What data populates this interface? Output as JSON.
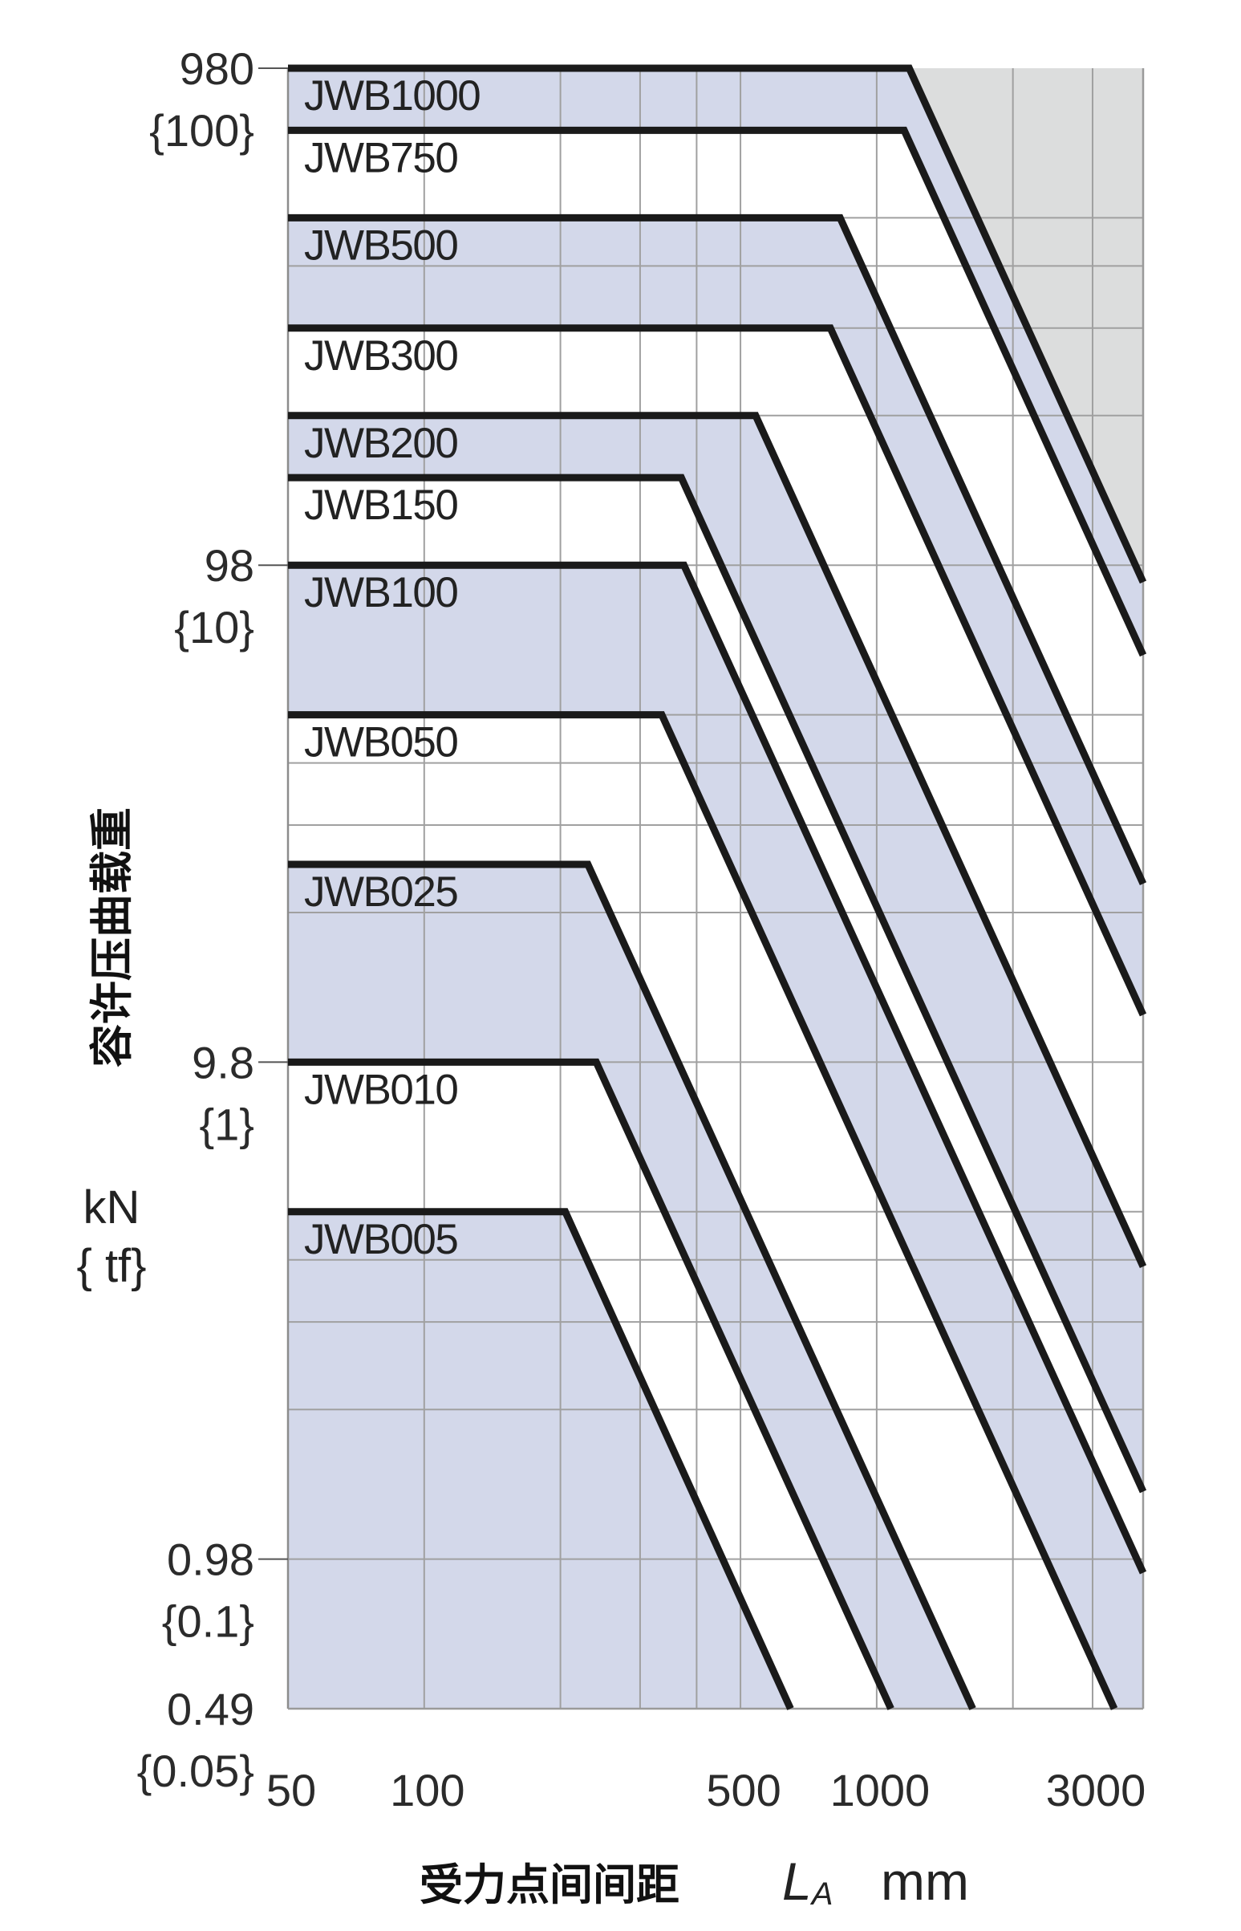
{
  "chart_data": {
    "type": "line",
    "x_scale": "log",
    "y_scale": "log",
    "xlim": [
      50,
      3880
    ],
    "ylim": [
      0.49,
      980
    ],
    "grid": true,
    "x_grid": [
      100,
      200,
      300,
      400,
      500,
      1000,
      2000,
      3000
    ],
    "y_grid": [
      0.98,
      1.96,
      2.94,
      3.92,
      4.9,
      9.8,
      19.6,
      29.4,
      39.2,
      49,
      98,
      196,
      294,
      392,
      490
    ],
    "x_ticks": [
      {
        "value": 50,
        "label": "50"
      },
      {
        "value": 100,
        "label": "100"
      },
      {
        "value": 500,
        "label": "500"
      },
      {
        "value": 1000,
        "label": "1000"
      },
      {
        "value": 3000,
        "label": "3000"
      }
    ],
    "y_ticks": [
      {
        "value": 980,
        "label": "980",
        "sub": "{100}"
      },
      {
        "value": 98,
        "label": "98",
        "sub": "{10}"
      },
      {
        "value": 9.8,
        "label": "9.8",
        "sub": "{1}"
      },
      {
        "value": 0.98,
        "label": "0.98",
        "sub": "{0.1}"
      },
      {
        "value": 0.49,
        "label": "0.49",
        "sub": "{0.05}"
      }
    ],
    "ylabel": "容许压曲载重",
    "yunit": "kN",
    "yunit_alt": "{ tf}",
    "xlabel": "受力点间间距",
    "xsymbol": "L",
    "xsymbol_sub": "A",
    "xunit": "mm",
    "band_colors": [
      "#d3d8ea",
      "#ffffff"
    ],
    "region_above_color": "#dcdddd",
    "line_color": "#1a1a1a",
    "grid_color": "#a0a0a0",
    "series": [
      {
        "name": "JWB1000",
        "points": [
          [
            50,
            980
          ],
          [
            1180,
            980
          ],
          [
            3880,
            90.6
          ]
        ]
      },
      {
        "name": "JWB750",
        "points": [
          [
            50,
            735
          ],
          [
            1150,
            735
          ],
          [
            3880,
            64.6
          ]
        ]
      },
      {
        "name": "JWB500",
        "points": [
          [
            50,
            490
          ],
          [
            830,
            490
          ],
          [
            3880,
            22.4
          ]
        ]
      },
      {
        "name": "JWB300",
        "points": [
          [
            50,
            294
          ],
          [
            790,
            294
          ],
          [
            3880,
            12.2
          ]
        ]
      },
      {
        "name": "JWB200",
        "points": [
          [
            50,
            196
          ],
          [
            540,
            196
          ],
          [
            3880,
            3.8
          ]
        ]
      },
      {
        "name": "JWB150",
        "points": [
          [
            50,
            147
          ],
          [
            370,
            147
          ],
          [
            3880,
            1.34
          ]
        ]
      },
      {
        "name": "JWB100",
        "points": [
          [
            50,
            98
          ],
          [
            375,
            98
          ],
          [
            3880,
            0.92
          ]
        ]
      },
      {
        "name": "JWB050",
        "points": [
          [
            50,
            49
          ],
          [
            335,
            49
          ],
          [
            3350,
            0.49
          ]
        ]
      },
      {
        "name": "JWB025",
        "points": [
          [
            50,
            24.5
          ],
          [
            230,
            24.5
          ],
          [
            1630,
            0.49
          ]
        ]
      },
      {
        "name": "JWB010",
        "points": [
          [
            50,
            9.8
          ],
          [
            240,
            9.8
          ],
          [
            1075,
            0.49
          ]
        ]
      },
      {
        "name": "JWB005",
        "points": [
          [
            50,
            4.9
          ],
          [
            205,
            4.9
          ],
          [
            645,
            0.49
          ]
        ]
      }
    ]
  }
}
